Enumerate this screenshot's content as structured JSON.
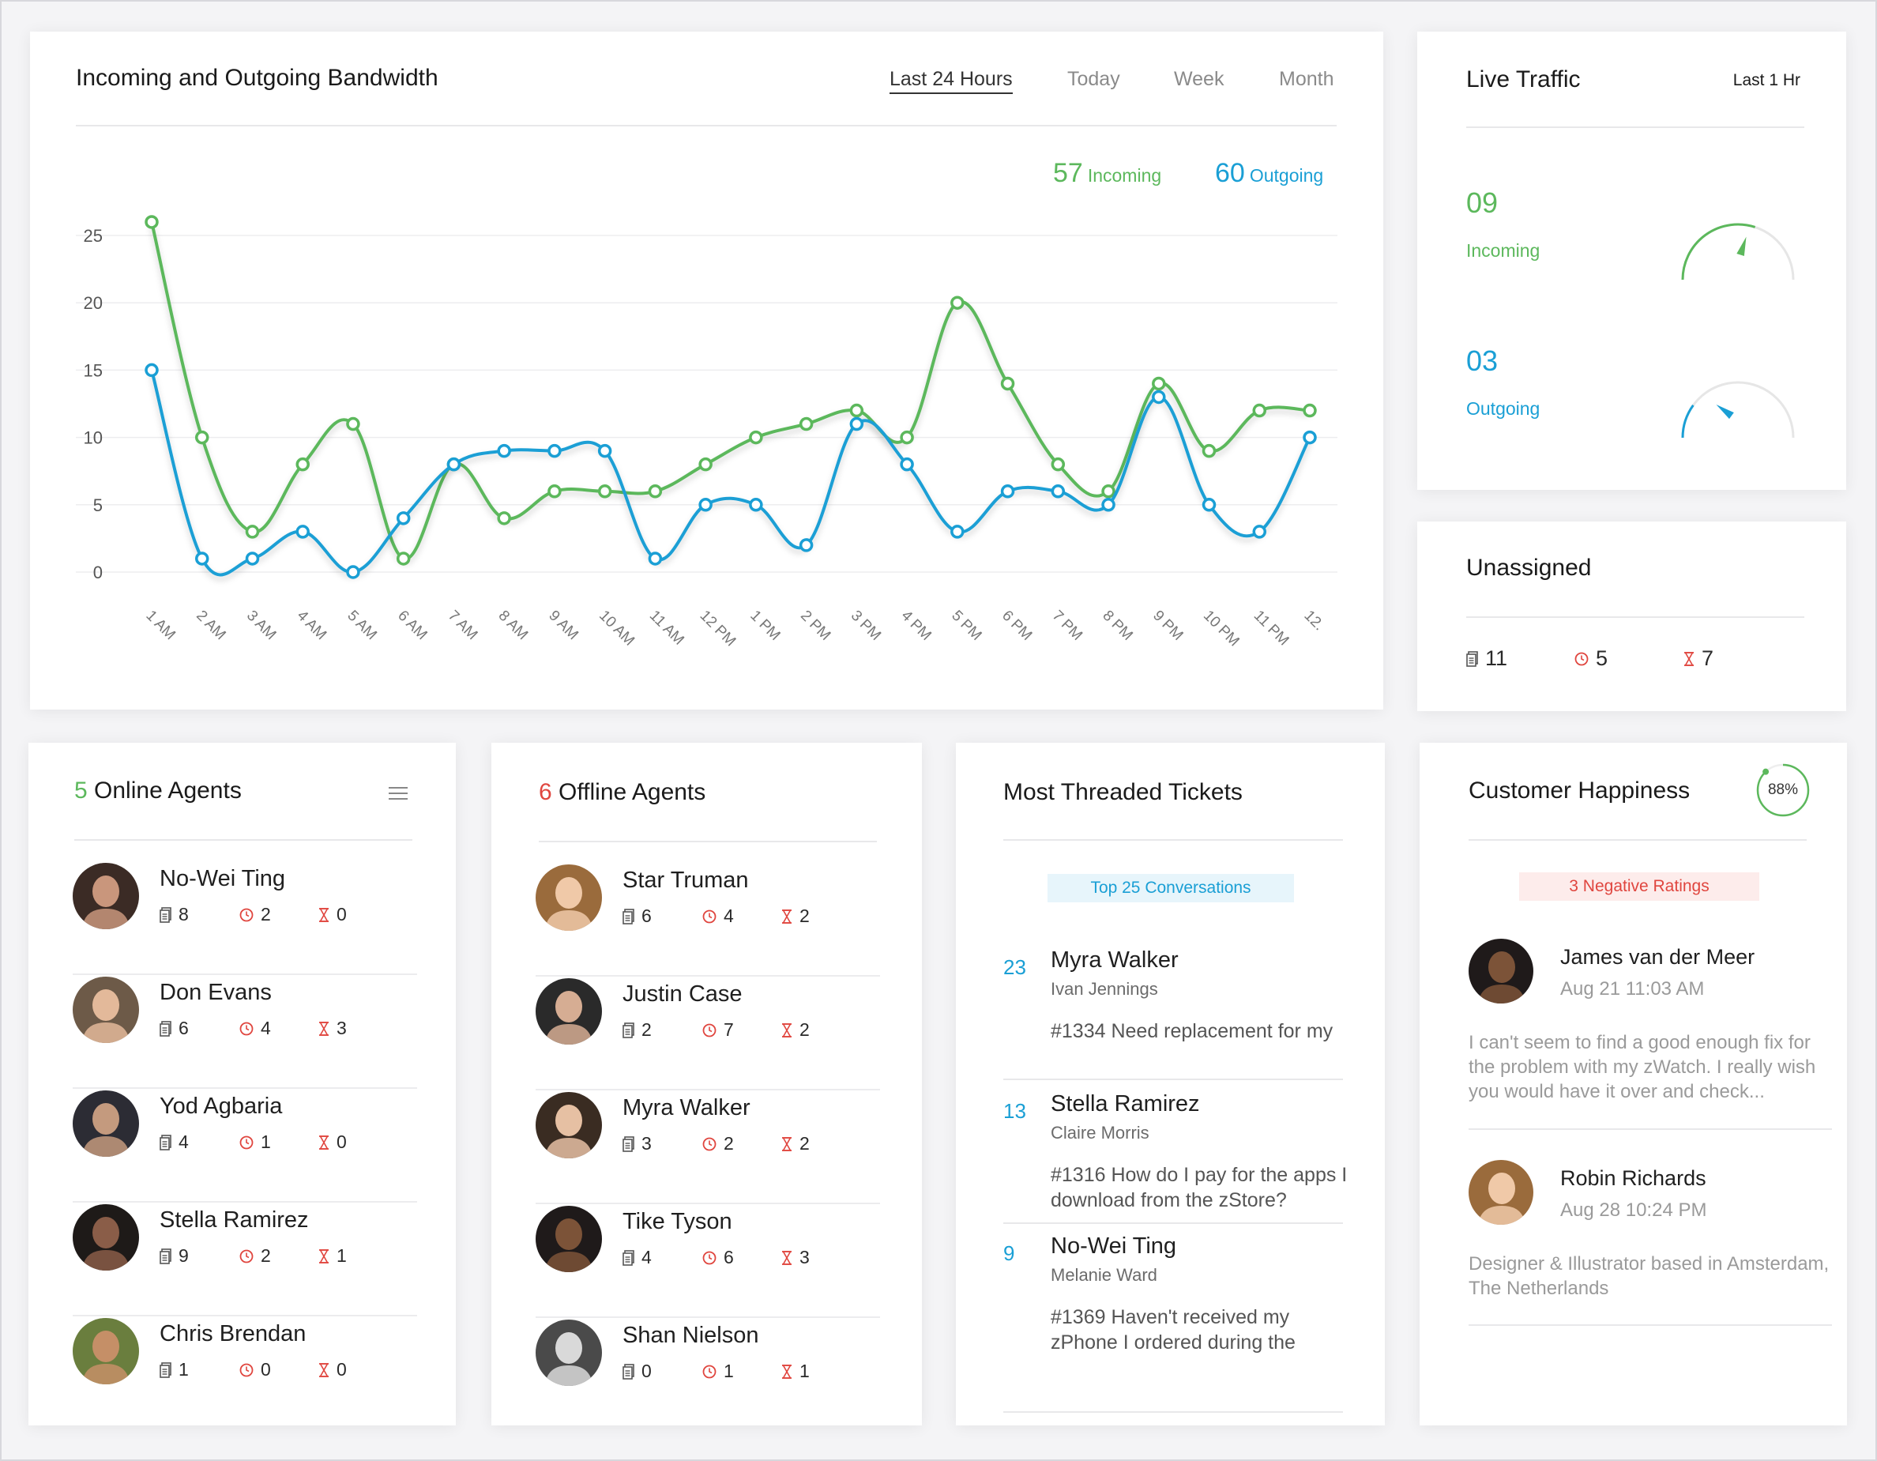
{
  "bandwidth": {
    "title": "Incoming and Outgoing Bandwidth",
    "ranges": [
      "Last 24 Hours",
      "Today",
      "Week",
      "Month"
    ],
    "active_range": "Last 24 Hours",
    "incoming_total": "57",
    "incoming_label": "Incoming",
    "outgoing_total": "60",
    "outgoing_label": "Outgoing"
  },
  "chart_data": {
    "type": "line",
    "title": "",
    "xlabel": "",
    "ylabel": "",
    "ylim": [
      0,
      25
    ],
    "yticks": [
      "0",
      "5",
      "10",
      "15",
      "20",
      "25"
    ],
    "grid": true,
    "categories": [
      "1 AM",
      "2 AM",
      "3 AM",
      "4 AM",
      "5 AM",
      "6 AM",
      "7 AM",
      "8 AM",
      "9 AM",
      "10 AM",
      "11 AM",
      "12 PM",
      "1 PM",
      "2 PM",
      "3 PM",
      "4 PM",
      "5 PM",
      "6 PM",
      "7 PM",
      "8 PM",
      "9 PM",
      "10 PM",
      "11 PM",
      "12."
    ],
    "series": [
      {
        "name": "Incoming",
        "color": "#5cb85c",
        "values": [
          26,
          10,
          3,
          8,
          11,
          1,
          8,
          4,
          6,
          6,
          6,
          8,
          10,
          11,
          12,
          10,
          20,
          14,
          8,
          6,
          14,
          9,
          12,
          12
        ]
      },
      {
        "name": "Outgoing",
        "color": "#1a9fd5",
        "values": [
          15,
          1,
          1,
          3,
          0,
          4,
          8,
          9,
          9,
          9,
          1,
          5,
          5,
          2,
          11,
          8,
          3,
          6,
          6,
          5,
          13,
          5,
          3,
          10
        ]
      }
    ]
  },
  "live_traffic": {
    "title": "Live Traffic",
    "period": "Last 1 Hr",
    "incoming_value": "09",
    "incoming_label": "Incoming",
    "incoming_level": 0.6,
    "outgoing_value": "03",
    "outgoing_label": "Outgoing",
    "outgoing_level": 0.2
  },
  "unassigned": {
    "title": "Unassigned",
    "tickets": "11",
    "overdue": "5",
    "waiting": "7"
  },
  "online_agents": {
    "count": "5",
    "title": "Online Agents",
    "agents": [
      {
        "name": "No-Wei Ting",
        "tickets": "8",
        "overdue": "2",
        "waiting": "0"
      },
      {
        "name": "Don Evans",
        "tickets": "6",
        "overdue": "4",
        "waiting": "3"
      },
      {
        "name": "Yod Agbaria",
        "tickets": "4",
        "overdue": "1",
        "waiting": "0"
      },
      {
        "name": "Stella Ramirez",
        "tickets": "9",
        "overdue": "2",
        "waiting": "1"
      },
      {
        "name": "Chris Brendan",
        "tickets": "1",
        "overdue": "0",
        "waiting": "0"
      }
    ]
  },
  "offline_agents": {
    "count": "6",
    "title": "Offline Agents",
    "agents": [
      {
        "name": "Star Truman",
        "tickets": "6",
        "overdue": "4",
        "waiting": "2"
      },
      {
        "name": "Justin Case",
        "tickets": "2",
        "overdue": "7",
        "waiting": "2"
      },
      {
        "name": "Myra Walker",
        "tickets": "3",
        "overdue": "2",
        "waiting": "2"
      },
      {
        "name": "Tike Tyson",
        "tickets": "4",
        "overdue": "6",
        "waiting": "3"
      },
      {
        "name": "Shan Nielson",
        "tickets": "0",
        "overdue": "1",
        "waiting": "1"
      }
    ]
  },
  "threaded": {
    "title": "Most Threaded Tickets",
    "pill": "Top 25 Conversations",
    "tickets": [
      {
        "count": "23",
        "name": "Myra Walker",
        "agent": "Ivan Jennings",
        "text": "#1334 Need replacement for my"
      },
      {
        "count": "13",
        "name": "Stella Ramirez",
        "agent": "Claire Morris",
        "text": "#1316 How do I pay for the apps I download from the zStore?"
      },
      {
        "count": "9",
        "name": "No-Wei Ting",
        "agent": "Melanie Ward",
        "text": "#1369 Haven't received my zPhone I ordered during the"
      }
    ]
  },
  "happiness": {
    "title": "Customer Happiness",
    "percent_label": "88%",
    "percent": 88,
    "pill": "3 Negative Ratings",
    "reviews": [
      {
        "name": "James van der Meer",
        "time": "Aug 21 11:03 AM",
        "text": "I can't seem to find a good enough fix for the problem with my zWatch. I really wish you would have it over and check..."
      },
      {
        "name": "Robin Richards",
        "time": "Aug 28 10:24 PM",
        "text": "Designer & Illustrator based in Amsterdam, The Netherlands"
      }
    ]
  },
  "colors": {
    "green": "#5cb85c",
    "blue": "#1a9fd5",
    "red": "#e0463f"
  }
}
